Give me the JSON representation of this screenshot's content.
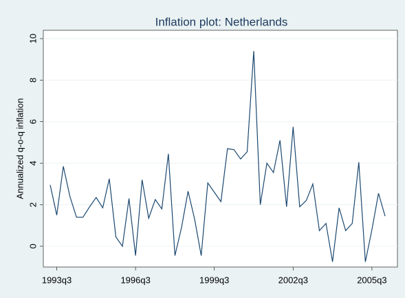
{
  "chart_data": {
    "type": "line",
    "title": "Inflation plot: Netherlands",
    "y_label": "Annualized q-o-q inflation",
    "categories": [
      null,
      "1993q3",
      null,
      null,
      null,
      null,
      null,
      null,
      null,
      null,
      null,
      null,
      null,
      "1996q3",
      null,
      null,
      null,
      null,
      null,
      null,
      null,
      null,
      null,
      null,
      null,
      "1999q3",
      null,
      null,
      null,
      null,
      null,
      null,
      null,
      null,
      null,
      null,
      null,
      "2002q3",
      null,
      null,
      null,
      null,
      null,
      null,
      null,
      null,
      null,
      null,
      null,
      "2005q3",
      null,
      null
    ],
    "series": [
      {
        "name": "Annualized q-o-q inflation",
        "color": "#1a476f",
        "values": [
          2.95,
          1.5,
          3.85,
          2.4,
          1.4,
          1.4,
          1.9,
          2.35,
          1.85,
          3.25,
          0.45,
          0.0,
          2.3,
          -0.45,
          3.2,
          1.35,
          2.25,
          1.8,
          4.45,
          -0.45,
          0.9,
          2.65,
          1.3,
          -0.45,
          3.05,
          2.6,
          2.15,
          4.7,
          4.65,
          4.2,
          4.55,
          9.4,
          2.0,
          4.0,
          3.55,
          5.1,
          1.9,
          5.75,
          1.9,
          2.2,
          3.0,
          0.75,
          1.1,
          -0.75,
          1.85,
          0.75,
          1.1,
          4.05,
          -0.75,
          0.8,
          2.55,
          1.45
        ]
      }
    ],
    "ylim": [
      -1,
      10.4
    ],
    "yticks": [
      0,
      2,
      4,
      6,
      8,
      10
    ],
    "grid": true
  }
}
